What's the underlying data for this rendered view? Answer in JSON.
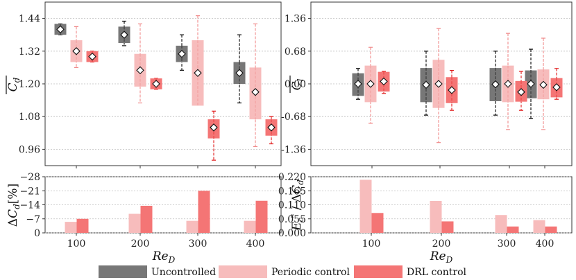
{
  "colors": {
    "uncontrolled": "#777777",
    "periodic": "#f7bcbc",
    "drl": "#f47575",
    "uncontrolled_err": "#000000",
    "periodic_err": "#f08a8a",
    "drl_err": "#e01818"
  },
  "legend": {
    "uncontrolled": "Uncontrolled",
    "periodic": "Periodic control",
    "drl": "DRL control"
  },
  "chart_data": [
    {
      "id": "cd",
      "type": "box",
      "ylabel": "C_d (time-averaged)",
      "ylim": [
        0.9,
        1.5
      ],
      "yticks": [
        "0.96",
        "1.08",
        "1.20",
        "1.32",
        "1.44"
      ],
      "categories": [
        "100",
        "200",
        "300",
        "400"
      ],
      "series": [
        {
          "name": "Uncontrolled",
          "mean": [
            1.4,
            1.38,
            1.31,
            1.24
          ],
          "box": [
            [
              1.38,
              1.42
            ],
            [
              1.35,
              1.41
            ],
            [
              1.28,
              1.34
            ],
            [
              1.2,
              1.28
            ]
          ],
          "whisker": [
            [
              1.38,
              1.42
            ],
            [
              1.34,
              1.43
            ],
            [
              1.25,
              1.38
            ],
            [
              1.13,
              1.38
            ]
          ]
        },
        {
          "name": "Periodic control",
          "mean": [
            1.32,
            1.25,
            1.24,
            1.17
          ],
          "box": [
            [
              1.28,
              1.36
            ],
            [
              1.19,
              1.31
            ],
            [
              1.12,
              1.36
            ],
            [
              1.07,
              1.26
            ]
          ],
          "whisker": [
            [
              1.26,
              1.41
            ],
            [
              1.13,
              1.42
            ],
            [
              1.17,
              1.45
            ],
            [
              0.97,
              1.42
            ]
          ]
        },
        {
          "name": "DRL control",
          "mean": [
            1.3,
            1.2,
            1.04,
            1.04
          ],
          "box": [
            [
              1.28,
              1.32
            ],
            [
              1.18,
              1.22
            ],
            [
              1.0,
              1.07
            ],
            [
              1.01,
              1.07
            ]
          ],
          "whisker": [
            [
              1.28,
              1.32
            ],
            [
              1.18,
              1.22
            ],
            [
              0.92,
              1.1
            ],
            [
              0.98,
              1.08
            ]
          ]
        }
      ]
    },
    {
      "id": "cl",
      "type": "box",
      "ylabel": "C_l (time-averaged)",
      "ylim": [
        -1.7,
        1.7
      ],
      "yticks": [
        "-1.36",
        "-0.68",
        "0.00",
        "0.68",
        "1.36"
      ],
      "categories": [
        "100",
        "200",
        "300",
        "400"
      ],
      "series": [
        {
          "name": "Uncontrolled",
          "mean": [
            0.0,
            -0.02,
            -0.01,
            0.0
          ],
          "box": [
            [
              -0.25,
              0.22
            ],
            [
              -0.38,
              0.33
            ],
            [
              -0.36,
              0.33
            ],
            [
              -0.3,
              0.28
            ]
          ],
          "whisker": [
            [
              -0.32,
              0.32
            ],
            [
              -0.65,
              0.68
            ],
            [
              -0.65,
              0.68
            ],
            [
              -0.72,
              0.72
            ]
          ]
        },
        {
          "name": "Periodic control",
          "mean": [
            0.0,
            0.0,
            0.0,
            -0.02
          ],
          "box": [
            [
              -0.38,
              0.38
            ],
            [
              -0.5,
              0.5
            ],
            [
              -0.38,
              0.38
            ],
            [
              -0.32,
              0.3
            ]
          ],
          "whisker": [
            [
              -0.82,
              0.76
            ],
            [
              -1.22,
              1.15
            ],
            [
              -0.95,
              1.05
            ],
            [
              -0.95,
              0.95
            ]
          ]
        },
        {
          "name": "DRL control",
          "mean": [
            0.05,
            -0.13,
            -0.17,
            -0.07
          ],
          "box": [
            [
              -0.16,
              0.25
            ],
            [
              -0.4,
              0.14
            ],
            [
              -0.37,
              0.06
            ],
            [
              -0.28,
              0.12
            ]
          ],
          "whisker": [
            [
              -0.2,
              0.26
            ],
            [
              -0.55,
              0.28
            ],
            [
              -0.55,
              0.26
            ],
            [
              -0.32,
              0.32
            ]
          ]
        }
      ]
    },
    {
      "id": "dcd",
      "type": "bar",
      "ylabel": "ΔC_d[%]",
      "ylim": [
        0,
        -28
      ],
      "yticks": [
        "0",
        "−7",
        "−14",
        "−21",
        "−28"
      ],
      "categories": [
        "100",
        "200",
        "300",
        "400"
      ],
      "xlabel": "Re_D",
      "series": [
        {
          "name": "Periodic control",
          "values": [
            -5.5,
            -9.5,
            -6.0,
            -6.0
          ]
        },
        {
          "name": "DRL control",
          "values": [
            -7.0,
            -13.5,
            -21.0,
            -16.0
          ]
        }
      ]
    },
    {
      "id": "eff",
      "type": "bar",
      "ylabel": "E*_c / ΔC_d",
      "ylim": [
        0,
        0.22
      ],
      "yticks": [
        "0.000",
        "0.055",
        "0.110",
        "0.165",
        "0.220"
      ],
      "categories": [
        "100",
        "200",
        "300",
        "400"
      ],
      "xlabel": "Re_D",
      "series": [
        {
          "name": "Periodic control",
          "values": [
            0.208,
            0.125,
            0.07,
            0.05
          ]
        },
        {
          "name": "DRL control",
          "values": [
            0.078,
            0.045,
            0.025,
            0.025
          ]
        }
      ]
    }
  ]
}
